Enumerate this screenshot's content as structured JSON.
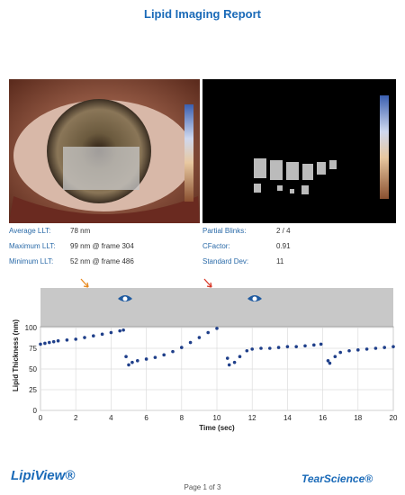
{
  "header": {
    "title": "Lipid Imaging Report"
  },
  "stats": [
    {
      "label": "Average LLT:",
      "value": "78 nm"
    },
    {
      "label": "Maximum LLT:",
      "value": "99 nm @ frame 304"
    },
    {
      "label": "Minimum LLT:",
      "value": "52 nm @ frame 486"
    },
    {
      "label": "Partial Blinks:",
      "value": "2 / 4"
    },
    {
      "label": "CFactor:",
      "value": "0.91"
    },
    {
      "label": "Standard Dev:",
      "value": "11"
    }
  ],
  "chart_data": {
    "type": "scatter",
    "x_label": "Time (sec)",
    "y_label": "Lipid Thickness (nm)",
    "x": [
      0,
      0.25,
      0.5,
      0.75,
      1,
      1.5,
      2,
      2.5,
      3,
      3.5,
      4,
      4.5,
      4.7,
      4.85,
      5.0,
      5.2,
      5.5,
      6,
      6.5,
      7,
      7.5,
      8,
      8.5,
      9,
      9.5,
      10,
      10.6,
      10.7,
      11,
      11.3,
      11.7,
      12,
      12.5,
      13,
      13.5,
      14,
      14.5,
      15,
      15.5,
      15.9,
      16.3,
      16.4,
      16.7,
      17,
      17.5,
      18,
      18.5,
      19,
      19.5,
      20
    ],
    "values": [
      80,
      81,
      82,
      83,
      84,
      85,
      86,
      88,
      90,
      92,
      94,
      96,
      97,
      65,
      55,
      58,
      60,
      62,
      64,
      67,
      71,
      76,
      82,
      88,
      94,
      99,
      63,
      55,
      58,
      65,
      72,
      74,
      75,
      75,
      76,
      77,
      77,
      78,
      79,
      80,
      60,
      57,
      65,
      70,
      72,
      73,
      74,
      75,
      76,
      77
    ],
    "color": "#1f3f8a",
    "xlim": [
      0,
      20
    ],
    "ylim": [
      0,
      100
    ],
    "xticks": [
      0,
      2,
      4,
      6,
      8,
      10,
      12,
      14,
      16,
      18,
      20
    ],
    "yticks": [
      0,
      25,
      50,
      75,
      100
    ],
    "grid": true
  },
  "footer": {
    "logo_left": "LipiView®",
    "page": "Page 1 of 3",
    "logo_right": "TearScience®"
  }
}
